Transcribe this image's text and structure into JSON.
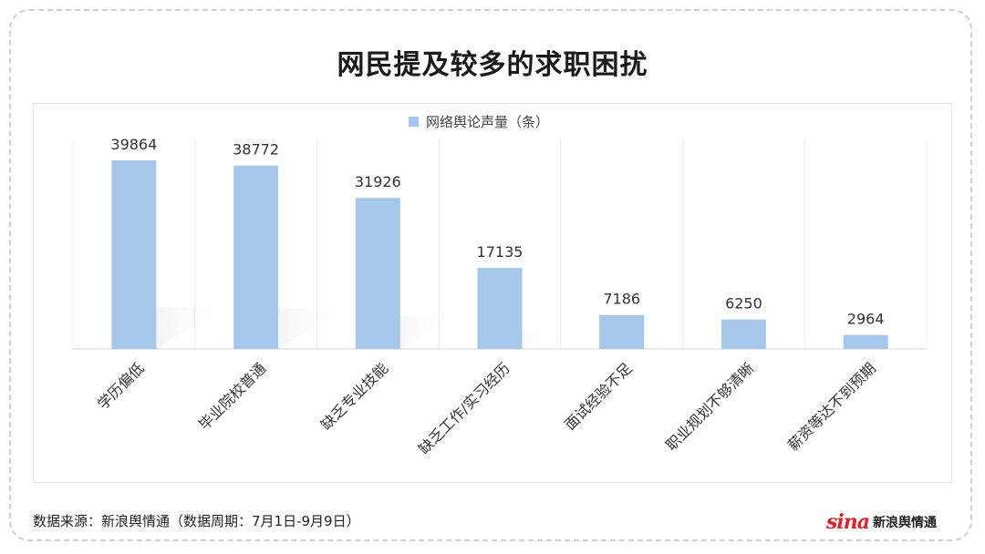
{
  "chart_data": {
    "type": "bar",
    "title": "网民提及较多的求职困扰",
    "legend": "网络舆论声量（条）",
    "legend_position": "top-center",
    "categories": [
      "学历偏低",
      "毕业院校普通",
      "缺乏专业技能",
      "缺乏工作/实习经历",
      "面试经验不足",
      "职业规划不够清晰",
      "薪资等达不到预期"
    ],
    "series": [
      {
        "name": "网络舆论声量（条）",
        "values": [
          39864,
          38772,
          31926,
          17135,
          7186,
          6250,
          2964
        ]
      }
    ],
    "ylim": [
      0,
      40000
    ],
    "grid": "vertical-category-lines",
    "bar_color": "#a7c7ea"
  },
  "footer": {
    "source": "数据来源：新浪舆情通（数据周期：7月1日-9月9日）",
    "logo_mark": "sina",
    "logo_text": "新浪舆情通"
  }
}
